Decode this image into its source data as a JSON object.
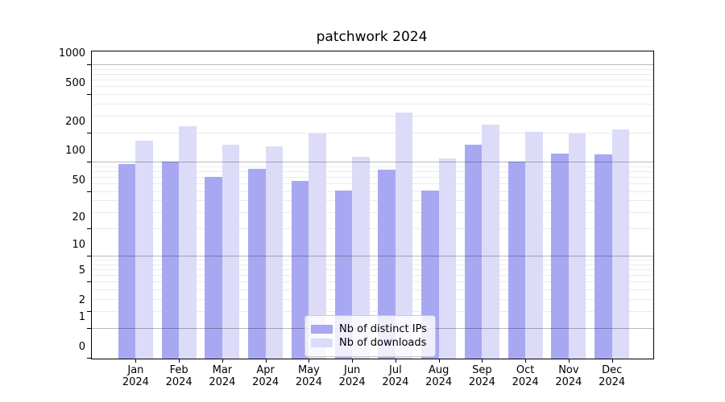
{
  "title": "patchwork 2024",
  "colors": {
    "ips_bar": "#a8a8f2",
    "downloads_bar": "#dcdcf8",
    "grid_major": "#b4b4b4",
    "grid_minor": "#ebebeb",
    "axis": "#000000",
    "legend_border": "#cccccc"
  },
  "legend": {
    "ips_label": "Nb of distinct IPs",
    "downloads_label": "Nb of downloads"
  },
  "chart_data": {
    "type": "bar",
    "title": "patchwork 2024",
    "categories": [
      "Jan 2024",
      "Feb 2024",
      "Mar 2024",
      "Apr 2024",
      "May 2024",
      "Jun 2024",
      "Jul 2024",
      "Aug 2024",
      "Sep 2024",
      "Oct 2024",
      "Nov 2024",
      "Dec 2024"
    ],
    "months": [
      "Jan",
      "Feb",
      "Mar",
      "Apr",
      "May",
      "Jun",
      "Jul",
      "Aug",
      "Sep",
      "Oct",
      "Nov",
      "Dec"
    ],
    "year": "2024",
    "series": [
      {
        "name": "Nb of distinct IPs",
        "color": "#a8a8f2",
        "values": [
          97,
          102,
          71,
          87,
          65,
          51,
          85,
          51,
          155,
          103,
          125,
          122
        ]
      },
      {
        "name": "Nb of downloads",
        "color": "#dcdcf8",
        "values": [
          168,
          237,
          155,
          149,
          200,
          116,
          330,
          110,
          245,
          207,
          200,
          222
        ]
      }
    ],
    "yscale": "log1p",
    "yticks": [
      0,
      1,
      2,
      5,
      10,
      20,
      50,
      100,
      200,
      500,
      1000
    ],
    "ylim": [
      0,
      1400
    ],
    "xlabel": "",
    "ylabel": "",
    "grid": true,
    "legend_position": "lower center"
  }
}
